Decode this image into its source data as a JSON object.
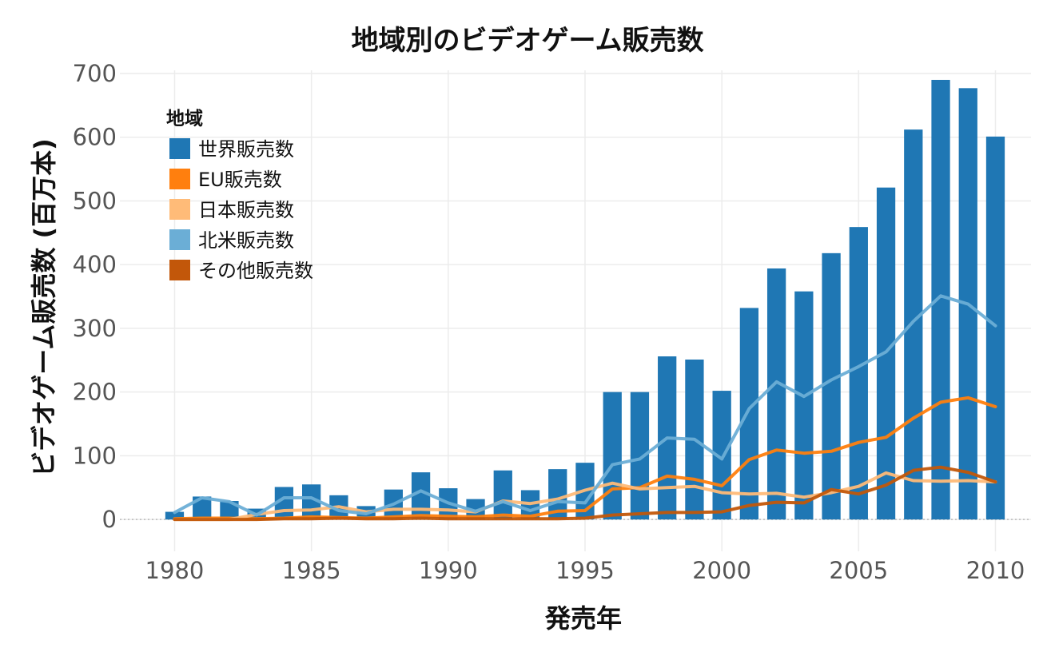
{
  "chart_data": {
    "type": "bar+line",
    "title": "地域別のビデオゲーム販売数",
    "xlabel": "発売年",
    "ylabel": "ビデオゲーム販売数 (百万本)",
    "xlim": [
      1978,
      2011.3
    ],
    "ylim": [
      -50,
      705
    ],
    "x_ticks": [
      1980,
      1985,
      1990,
      1995,
      2000,
      2005,
      2010
    ],
    "y_ticks": [
      0,
      100,
      200,
      300,
      400,
      500,
      600,
      700
    ],
    "grid": true,
    "legend_title": "地域",
    "legend_position": "top-left",
    "x": [
      1980,
      1981,
      1982,
      1983,
      1984,
      1985,
      1986,
      1987,
      1988,
      1989,
      1990,
      1991,
      1992,
      1993,
      1994,
      1995,
      1996,
      1997,
      1998,
      1999,
      2000,
      2001,
      2002,
      2003,
      2004,
      2005,
      2006,
      2007,
      2008,
      2009,
      2010
    ],
    "series": [
      {
        "name": "世界販売数",
        "kind": "bar",
        "color": "#1f77b4",
        "values": [
          12,
          36,
          29,
          17,
          51,
          55,
          38,
          21,
          47,
          74,
          49,
          32,
          77,
          46,
          79,
          89,
          200,
          200,
          256,
          251,
          202,
          332,
          394,
          358,
          418,
          459,
          521,
          612,
          690,
          677,
          601
        ]
      },
      {
        "name": "EU販売数",
        "kind": "line",
        "color": "#ff7f0e",
        "values": [
          1,
          2,
          2,
          1,
          2,
          4,
          3,
          2,
          4,
          6,
          5,
          4,
          7,
          5,
          13,
          14,
          48,
          50,
          68,
          63,
          53,
          94,
          109,
          104,
          107,
          121,
          129,
          159,
          184,
          191,
          177
        ]
      },
      {
        "name": "日本販売数",
        "kind": "line",
        "color": "#ffbb78",
        "values": [
          0,
          0,
          0,
          8,
          14,
          15,
          20,
          12,
          16,
          16,
          15,
          12,
          29,
          25,
          32,
          46,
          57,
          48,
          50,
          52,
          42,
          40,
          41,
          35,
          42,
          52,
          73,
          61,
          60,
          61,
          59
        ]
      },
      {
        "name": "北米販売数",
        "kind": "line",
        "color": "#6baed6",
        "values": [
          11,
          34,
          28,
          7,
          34,
          34,
          14,
          9,
          24,
          45,
          26,
          13,
          28,
          14,
          28,
          26,
          86,
          95,
          128,
          126,
          95,
          174,
          216,
          193,
          219,
          240,
          263,
          311,
          351,
          338,
          304
        ]
      },
      {
        "name": "その他販売数",
        "kind": "line",
        "color": "#c2570a",
        "values": [
          0,
          0,
          0,
          0,
          1,
          1,
          2,
          1,
          1,
          2,
          1,
          1,
          1,
          1,
          1,
          2,
          7,
          9,
          11,
          11,
          12,
          22,
          27,
          26,
          47,
          40,
          54,
          77,
          82,
          74,
          59
        ]
      }
    ]
  }
}
